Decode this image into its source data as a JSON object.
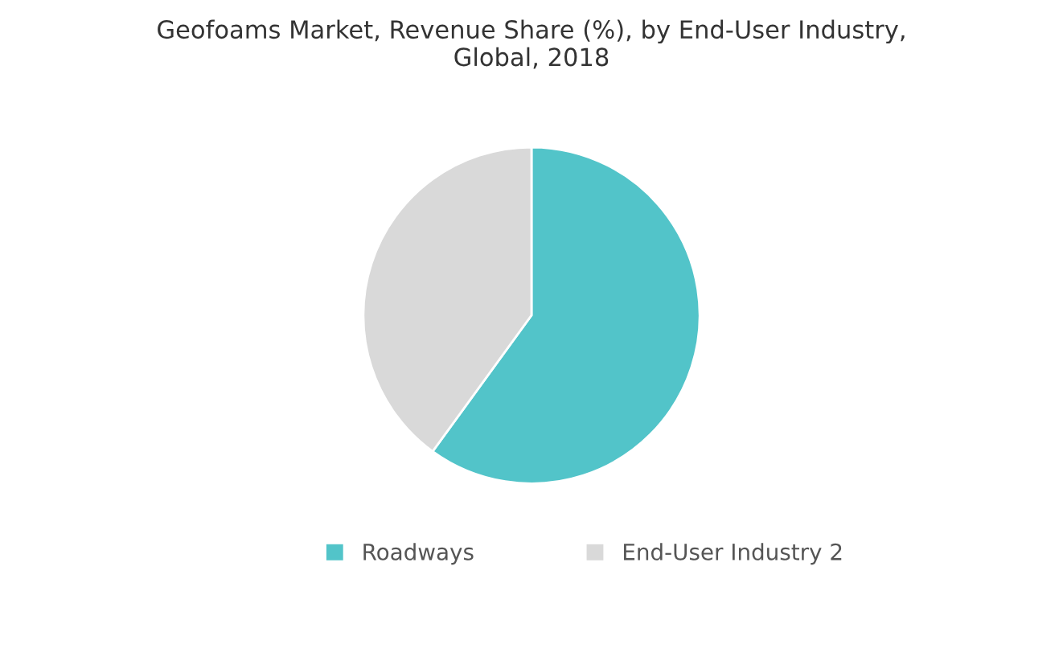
{
  "chart_data": {
    "type": "pie",
    "title": "Geofoams Market, Revenue Share (%), by End-User Industry,\nGlobal, 2018",
    "categories": [
      "Roadways",
      "End-User Industry 2"
    ],
    "values": [
      60,
      40
    ],
    "colors": [
      "#52c4c9",
      "#d9d9d9"
    ],
    "legend": "bottom"
  }
}
